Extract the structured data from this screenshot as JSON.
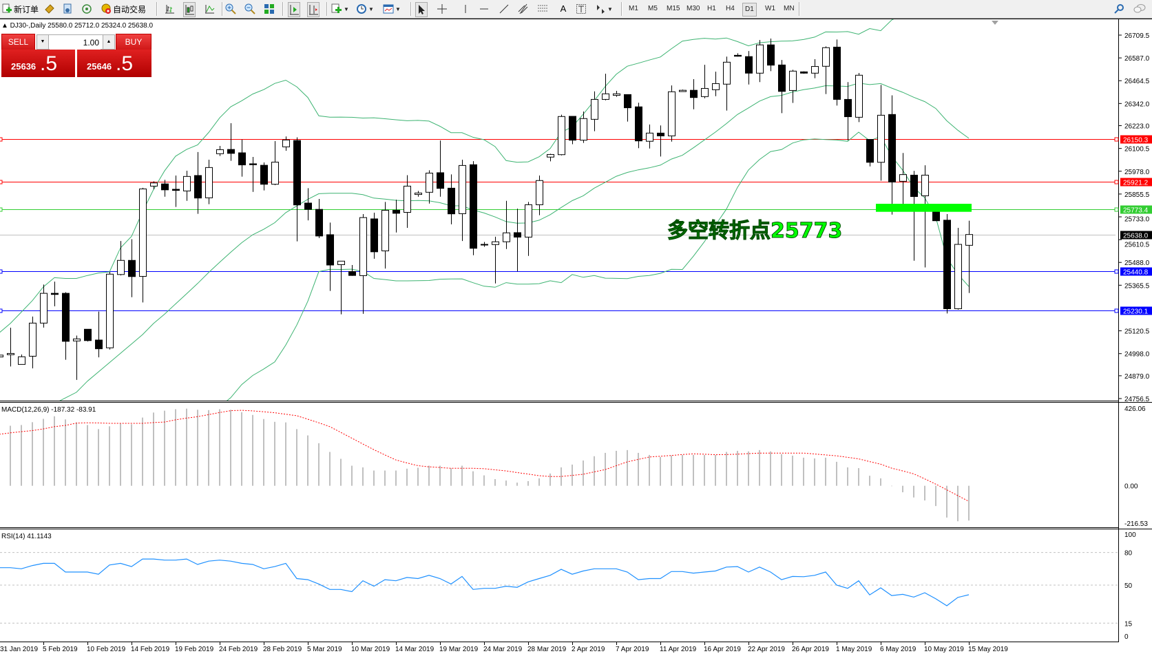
{
  "toolbar": {
    "new_order": "新订单",
    "auto_trading": "自动交易",
    "timeframes": [
      "M1",
      "M5",
      "M15",
      "M30",
      "H1",
      "H4",
      "D1",
      "W1",
      "MN"
    ],
    "active_timeframe": "D1",
    "icons": [
      "new-order-icon",
      "market-watch-icon",
      "navigator-icon",
      "signals-icon",
      "auto-trading-icon",
      "bar-chart-icon",
      "candlestick-icon",
      "line-chart-icon",
      "zoom-in-icon",
      "zoom-out-icon",
      "tile-windows-icon",
      "autoscroll-icon",
      "chart-shift-icon",
      "indicators-icon",
      "periods-icon",
      "templates-icon",
      "cursor-icon",
      "crosshair-icon",
      "vertical-line-icon",
      "horizontal-line-icon",
      "trendline-icon",
      "equidistant-channel-icon",
      "fibonacci-icon",
      "text-icon",
      "text-label-icon",
      "arrows-icon",
      "search-icon",
      "chat-icon"
    ]
  },
  "chart_header": "▲ DJ30-,Daily  25580.0 25712.0 25324.0 25638.0",
  "trade_panel": {
    "sell_label": "SELL",
    "buy_label": "BUY",
    "lot": "1.00",
    "sell_price_main": "25636",
    "sell_price_frac": ".5",
    "buy_price_main": "25646",
    "buy_price_frac": ".5"
  },
  "annotation": {
    "text": "多空转折点25773",
    "color": "#00ff00",
    "zone_price_top": 25803,
    "zone_price_bottom": 25760
  },
  "colors": {
    "bollinger": "#3cb371",
    "macd_histogram": "#c0c0c0",
    "macd_signal": "#ff0000",
    "rsi": "#1e90ff",
    "bull_body": "#ffffff",
    "bear_body": "#000000"
  },
  "chart_data": {
    "type": "candlestick",
    "symbol": "DJ30-",
    "timeframe": "Daily",
    "ylim": [
      24756.5,
      26709.5
    ],
    "y_tick_labels": [
      "26709.5",
      "26587.0",
      "26464.5",
      "26342.0",
      "26223.0",
      "26100.5",
      "25978.0",
      "25855.5",
      "25733.0",
      "25610.5",
      "25488.0",
      "25365.5",
      "25120.5",
      "24998.0",
      "24879.0",
      "24756.5"
    ],
    "x_tick_labels": [
      "31 Jan 2019",
      "5 Feb 2019",
      "10 Feb 2019",
      "14 Feb 2019",
      "19 Feb 2019",
      "24 Feb 2019",
      "28 Feb 2019",
      "5 Mar 2019",
      "10 Mar 2019",
      "14 Mar 2019",
      "19 Mar 2019",
      "24 Mar 2019",
      "28 Mar 2019",
      "2 Apr 2019",
      "7 Apr 2019",
      "11 Apr 2019",
      "16 Apr 2019",
      "22 Apr 2019",
      "26 Apr 2019",
      "1 May 2019",
      "6 May 2019",
      "10 May 2019",
      "15 May 2019"
    ],
    "ohlc": [
      [
        24980,
        24995,
        24975,
        24990
      ],
      [
        24992,
        25137,
        24929,
        24999
      ],
      [
        24940,
        24993,
        24940,
        24981
      ],
      [
        24984,
        25197,
        24919,
        25162
      ],
      [
        25162,
        25369,
        25138,
        25322
      ],
      [
        25322,
        25385,
        25252,
        25316
      ],
      [
        25322,
        25328,
        24965,
        25064
      ],
      [
        25066,
        25095,
        24857,
        25077
      ],
      [
        25129,
        25129,
        25063,
        25068
      ],
      [
        25071,
        25224,
        24978,
        25024
      ],
      [
        25029,
        25437,
        25020,
        25425
      ],
      [
        25423,
        25603,
        25418,
        25499
      ],
      [
        25499,
        25613,
        25301,
        25412
      ],
      [
        25413,
        25889,
        25273,
        25883
      ],
      [
        25898,
        25924,
        25881,
        25915
      ],
      [
        25910,
        25932,
        25841,
        25878
      ],
      [
        25881,
        25955,
        25786,
        25875
      ],
      [
        25872,
        25981,
        25819,
        25950
      ],
      [
        25955,
        26081,
        25749,
        25834
      ],
      [
        25835,
        26040,
        25801,
        25998
      ],
      [
        26072,
        26114,
        26060,
        26094
      ],
      [
        26095,
        26236,
        26034,
        26074
      ],
      [
        26077,
        26148,
        25949,
        26012
      ],
      [
        26018,
        26055,
        25867,
        26013
      ],
      [
        26010,
        26025,
        25875,
        25908
      ],
      [
        25908,
        26140,
        25903,
        26027
      ],
      [
        26109,
        26165,
        26088,
        26146
      ],
      [
        26143,
        26160,
        25601,
        25797
      ],
      [
        25807,
        25887,
        25714,
        25773
      ],
      [
        25773,
        25829,
        25619,
        25630
      ],
      [
        25637,
        25702,
        25335,
        25474
      ],
      [
        25476,
        25495,
        25209,
        25495
      ],
      [
        25439,
        25474,
        25416,
        25418
      ],
      [
        25417,
        25748,
        25212,
        25729
      ],
      [
        25722,
        25755,
        25508,
        25545
      ],
      [
        25550,
        25813,
        25455,
        25768
      ],
      [
        25768,
        25825,
        25649,
        25752
      ],
      [
        25757,
        25957,
        25674,
        25898
      ],
      [
        25853,
        25872,
        25841,
        25861
      ],
      [
        25865,
        25983,
        25804,
        25968
      ],
      [
        25970,
        26143,
        25841,
        25886
      ],
      [
        25887,
        25961,
        25693,
        25749
      ],
      [
        25750,
        26040,
        25603,
        26009
      ],
      [
        26013,
        26032,
        25527,
        25564
      ],
      [
        25585,
        25598,
        25572,
        25585
      ],
      [
        25584,
        25626,
        25375,
        25599
      ],
      [
        25599,
        25819,
        25560,
        25647
      ],
      [
        25648,
        25777,
        25440,
        25624
      ],
      [
        25624,
        25813,
        25523,
        25798
      ],
      [
        25798,
        25955,
        25742,
        25928
      ],
      [
        26054,
        26072,
        26031,
        26068
      ],
      [
        26067,
        26282,
        26063,
        26272
      ],
      [
        26273,
        26273,
        26123,
        26145
      ],
      [
        26145,
        26299,
        26130,
        26261
      ],
      [
        26257,
        26407,
        26193,
        26364
      ],
      [
        26364,
        26502,
        26359,
        26394
      ],
      [
        26386,
        26410,
        26378,
        26394
      ],
      [
        26390,
        26390,
        26245,
        26319
      ],
      [
        26324,
        26346,
        26102,
        26141
      ],
      [
        26139,
        26229,
        26100,
        26183
      ],
      [
        26183,
        26224,
        26057,
        26168
      ],
      [
        26168,
        26439,
        26137,
        26405
      ],
      [
        26406,
        26417,
        26405,
        26413
      ],
      [
        26413,
        26473,
        26311,
        26374
      ],
      [
        26379,
        26550,
        26370,
        26423
      ],
      [
        26416,
        26513,
        26381,
        26449
      ],
      [
        26446,
        26594,
        26304,
        26564
      ],
      [
        26601,
        26612,
        26594,
        26596
      ],
      [
        26594,
        26624,
        26444,
        26505
      ],
      [
        26505,
        26683,
        26457,
        26657
      ],
      [
        26657,
        26691,
        26516,
        26548
      ],
      [
        26549,
        26576,
        26290,
        26407
      ],
      [
        26412,
        26523,
        26345,
        26516
      ],
      [
        26512,
        26515,
        26502,
        26505
      ],
      [
        26505,
        26580,
        26478,
        26541
      ],
      [
        26542,
        26649,
        26393,
        26642
      ],
      [
        26645,
        26686,
        26331,
        26364
      ],
      [
        26364,
        26457,
        26144,
        26271
      ],
      [
        26268,
        26506,
        26242,
        26494
      ],
      [
        26149,
        26149,
        26004,
        26026
      ],
      [
        26026,
        26442,
        25927,
        26279
      ],
      [
        26283,
        26386,
        25745,
        25920
      ],
      [
        25924,
        26076,
        25801,
        25960
      ],
      [
        25957,
        25980,
        25497,
        25842
      ],
      [
        25846,
        26010,
        25461,
        25957
      ],
      [
        25764,
        25790,
        25710,
        25712
      ],
      [
        25715,
        25748,
        25214,
        25239
      ],
      [
        25239,
        25674,
        25234,
        25585
      ],
      [
        25580,
        25712,
        25324,
        25638
      ]
    ],
    "horizontal_lines": [
      {
        "price": 26150.3,
        "label": "26150.3",
        "color": "#ff0000"
      },
      {
        "price": 25921.2,
        "label": "25921.2",
        "color": "#ff0000"
      },
      {
        "price": 25773.4,
        "label": "25773.4",
        "color": "#32cd32"
      },
      {
        "price": 25638.0,
        "label": "25638.0",
        "color": "#c0c0c0",
        "label_bg": "#000000"
      },
      {
        "price": 25440.8,
        "label": "25440.8",
        "color": "#0000ff"
      },
      {
        "price": 25230.1,
        "label": "25230.1",
        "color": "#0000ff"
      }
    ],
    "bollinger_early": {
      "upper": [
        25110,
        25160,
        25221,
        25283,
        25357,
        25406,
        25402,
        25402,
        25418,
        25431,
        25437,
        25566,
        25628,
        25760,
        25880,
        25980,
        26059,
        26095,
        26120
      ],
      "middle": [
        24560,
        24590,
        24620,
        24660,
        24700,
        24730,
        24760,
        24790,
        24850,
        24900,
        24950,
        25000,
        25050,
        25100,
        25160,
        25210,
        25265,
        25320,
        25375
      ]
    },
    "macd": {
      "label": "MACD(12,26,9) -187.32 -83.91",
      "ylim": [
        -216.53,
        426.06
      ],
      "y_tick_labels": [
        "426.06",
        "0.00",
        "-216.53"
      ],
      "histogram": [
        315,
        323,
        327,
        342,
        360,
        374,
        357,
        341,
        327,
        305,
        320,
        334,
        331,
        367,
        394,
        404,
        412,
        415,
        409,
        407,
        412,
        409,
        396,
        381,
        359,
        344,
        341,
        305,
        271,
        229,
        182,
        145,
        108,
        99,
        82,
        82,
        82,
        92,
        97,
        108,
        108,
        94,
        108,
        78,
        56,
        36,
        28,
        17,
        25,
        40,
        66,
        99,
        114,
        136,
        159,
        177,
        188,
        192,
        177,
        166,
        155,
        163,
        166,
        166,
        166,
        166,
        182,
        188,
        185,
        192,
        185,
        170,
        162,
        151,
        147,
        151,
        129,
        99,
        95,
        54,
        40,
        -2,
        -35,
        -63,
        -79,
        -109,
        -171,
        -191,
        -187.32
      ],
      "signal": [
        277,
        285,
        291,
        297,
        306,
        318,
        325,
        337,
        339,
        338,
        336,
        336,
        336,
        336,
        340,
        343,
        355,
        364,
        372,
        383,
        394,
        404,
        406,
        403,
        398,
        393,
        385,
        377,
        358,
        339,
        318,
        287,
        256,
        225,
        194,
        166,
        139,
        123,
        108,
        102,
        98,
        94,
        94,
        94,
        92,
        86,
        80,
        71,
        63,
        54,
        50,
        50,
        56,
        62,
        75,
        87,
        108,
        129,
        142,
        155,
        159,
        163,
        168,
        172,
        170,
        167,
        168,
        170,
        173,
        176,
        176,
        176,
        176,
        176,
        171,
        166,
        161,
        153,
        145,
        130,
        116,
        95,
        80,
        64,
        37,
        9,
        -22,
        -53,
        -83.91
      ]
    },
    "rsi": {
      "label": "RSI(14) 41.1143",
      "ylim": [
        0,
        100
      ],
      "levels": [
        80,
        50,
        15
      ],
      "y_tick_labels": [
        "100",
        "80",
        "50",
        "15",
        "0"
      ],
      "values": [
        66,
        66,
        65,
        68,
        70,
        70,
        62,
        62,
        62,
        60,
        68.5,
        70,
        67,
        74,
        74,
        73,
        73,
        74,
        69,
        72,
        73,
        72,
        70,
        69,
        65,
        67,
        70,
        56,
        55,
        51,
        46,
        46,
        44,
        54,
        49,
        55,
        54,
        57,
        56,
        59,
        56,
        51,
        58,
        46,
        47,
        47,
        49,
        48,
        53,
        56,
        59,
        64.5,
        60,
        63,
        65,
        65,
        65,
        62,
        55,
        56,
        56,
        62.5,
        62.5,
        61,
        62,
        63,
        66.6,
        67,
        62,
        66.6,
        62,
        55,
        58,
        57.7,
        59,
        62,
        50,
        47,
        54,
        41,
        47.5,
        40.4,
        41.5,
        39,
        43,
        37.4,
        31,
        38.7,
        41.1143
      ]
    }
  }
}
